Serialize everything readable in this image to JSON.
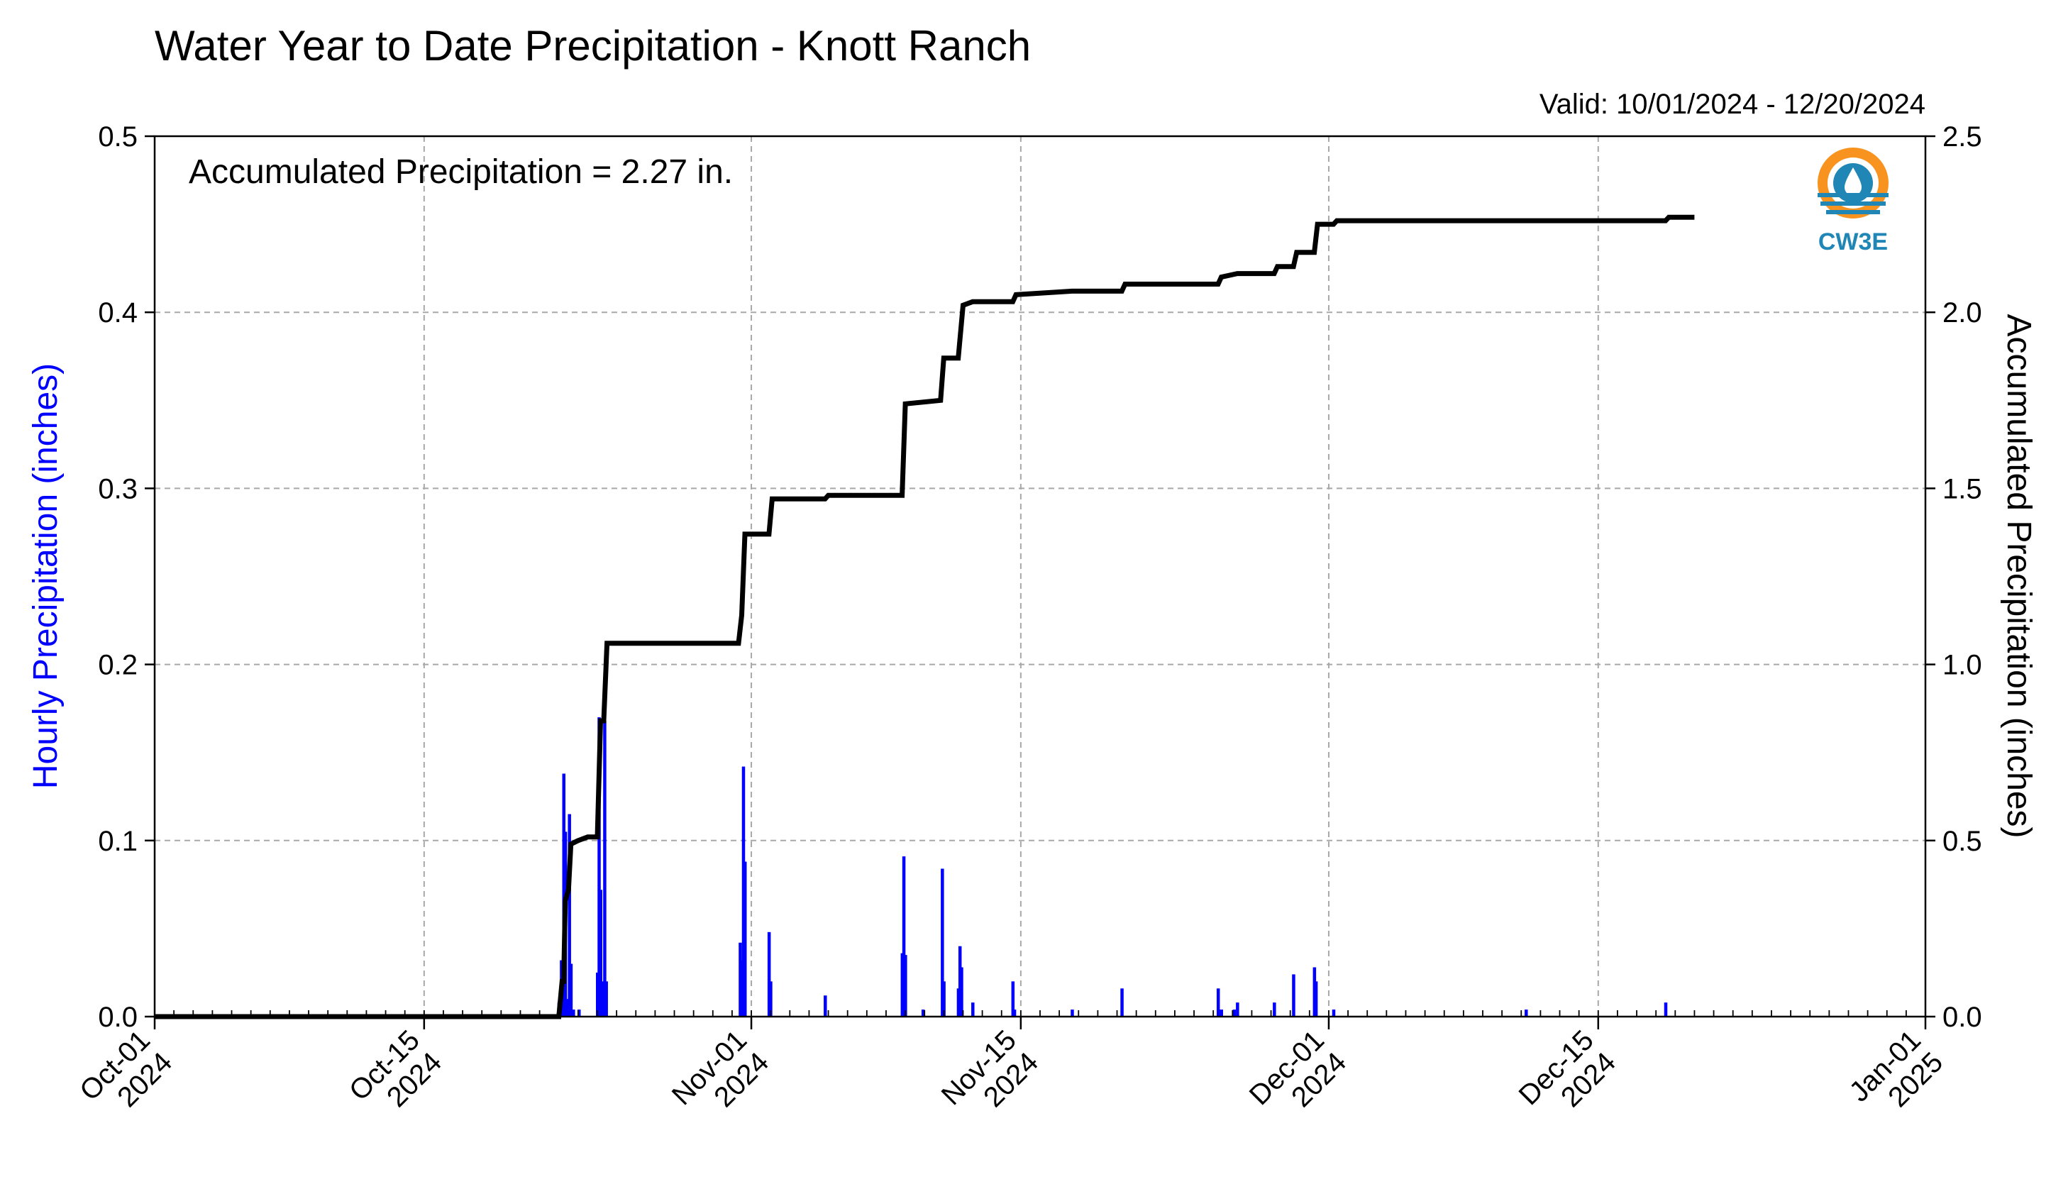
{
  "chart_data": {
    "type": "bar+line",
    "title": "Water Year to Date Precipitation - Knott Ranch",
    "valid_label": "Valid: 10/01/2024 - 12/20/2024",
    "annotation": "Accumulated Precipitation = 2.27 in.",
    "logo_text": "CW3E",
    "x_axis": {
      "range": [
        "2024-10-01",
        "2025-01-01"
      ],
      "major_ticks": [
        {
          "date": "2024-10-01",
          "line1": "Oct-01",
          "line2": "2024"
        },
        {
          "date": "2024-10-15",
          "line1": "Oct-15",
          "line2": "2024"
        },
        {
          "date": "2024-11-01",
          "line1": "Nov-01",
          "line2": "2024"
        },
        {
          "date": "2024-11-15",
          "line1": "Nov-15",
          "line2": "2024"
        },
        {
          "date": "2024-12-01",
          "line1": "Dec-01",
          "line2": "2024"
        },
        {
          "date": "2024-12-15",
          "line1": "Dec-15",
          "line2": "2024"
        },
        {
          "date": "2025-01-01",
          "line1": "Jan-01",
          "line2": "2025"
        }
      ],
      "minor_ticks": "daily"
    },
    "y_left": {
      "label": "Hourly Precipitation (inches)",
      "range": [
        0,
        0.5
      ],
      "ticks": [
        0.0,
        0.1,
        0.2,
        0.3,
        0.4,
        0.5
      ],
      "tick_labels": [
        "0.0",
        "0.1",
        "0.2",
        "0.3",
        "0.4",
        "0.5"
      ],
      "color": "#0000ff"
    },
    "y_right": {
      "label": "Accumulated Precipitation (inches)",
      "range": [
        0,
        2.5
      ],
      "ticks": [
        0.0,
        0.5,
        1.0,
        1.5,
        2.0,
        2.5
      ],
      "tick_labels": [
        "0.0",
        "0.5",
        "1.0",
        "1.5",
        "2.0",
        "2.5"
      ]
    },
    "grid": true,
    "series": [
      {
        "type": "bar",
        "axis": "left",
        "color": "#0000ff",
        "points": [
          {
            "date": "2024-10-22T00:00",
            "value": 0.008
          },
          {
            "date": "2024-10-22T03:00",
            "value": 0.032
          },
          {
            "date": "2024-10-22T06:00",
            "value": 0.138
          },
          {
            "date": "2024-10-22T08:00",
            "value": 0.105
          },
          {
            "date": "2024-10-22T10:00",
            "value": 0.01
          },
          {
            "date": "2024-10-22T13:00",
            "value": 0.115
          },
          {
            "date": "2024-10-22T15:00",
            "value": 0.03
          },
          {
            "date": "2024-10-22T18:00",
            "value": 0.004
          },
          {
            "date": "2024-10-23T01:00",
            "value": 0.004
          },
          {
            "date": "2024-10-24T00:00",
            "value": 0.025
          },
          {
            "date": "2024-10-24T02:00",
            "value": 0.17
          },
          {
            "date": "2024-10-24T04:00",
            "value": 0.072
          },
          {
            "date": "2024-10-24T06:00",
            "value": 0.02
          },
          {
            "date": "2024-10-24T09:00",
            "value": 0.168
          },
          {
            "date": "2024-10-24T11:00",
            "value": 0.02
          },
          {
            "date": "2024-10-31T10:00",
            "value": 0.042
          },
          {
            "date": "2024-10-31T12:00",
            "value": 0.032
          },
          {
            "date": "2024-10-31T14:00",
            "value": 0.142
          },
          {
            "date": "2024-10-31T16:00",
            "value": 0.088
          },
          {
            "date": "2024-11-01T22:00",
            "value": 0.048
          },
          {
            "date": "2024-11-02T00:00",
            "value": 0.02
          },
          {
            "date": "2024-11-04T20:00",
            "value": 0.012
          },
          {
            "date": "2024-11-08T20:00",
            "value": 0.036
          },
          {
            "date": "2024-11-08T22:00",
            "value": 0.091
          },
          {
            "date": "2024-11-09T00:00",
            "value": 0.035
          },
          {
            "date": "2024-11-09T22:00",
            "value": 0.004
          },
          {
            "date": "2024-11-10T22:00",
            "value": 0.084
          },
          {
            "date": "2024-11-11T00:00",
            "value": 0.02
          },
          {
            "date": "2024-11-11T18:00",
            "value": 0.016
          },
          {
            "date": "2024-11-11T20:00",
            "value": 0.04
          },
          {
            "date": "2024-11-11T22:00",
            "value": 0.028
          },
          {
            "date": "2024-11-12T12:00",
            "value": 0.008
          },
          {
            "date": "2024-11-14T14:00",
            "value": 0.02
          },
          {
            "date": "2024-11-14T16:00",
            "value": 0.004
          },
          {
            "date": "2024-11-17T16:00",
            "value": 0.004
          },
          {
            "date": "2024-11-20T06:00",
            "value": 0.016
          },
          {
            "date": "2024-11-25T06:00",
            "value": 0.016
          },
          {
            "date": "2024-11-25T10:00",
            "value": 0.004
          },
          {
            "date": "2024-11-26T02:00",
            "value": 0.004
          },
          {
            "date": "2024-11-26T06:00",
            "value": 0.008
          },
          {
            "date": "2024-11-28T04:00",
            "value": 0.008
          },
          {
            "date": "2024-11-29T04:00",
            "value": 0.024
          },
          {
            "date": "2024-11-30T06:00",
            "value": 0.028
          },
          {
            "date": "2024-11-30T08:00",
            "value": 0.02
          },
          {
            "date": "2024-12-01T06:00",
            "value": 0.004
          },
          {
            "date": "2024-12-11T06:00",
            "value": 0.004
          },
          {
            "date": "2024-12-18T12:00",
            "value": 0.008
          }
        ]
      },
      {
        "type": "line",
        "axis": "right",
        "color": "#000000",
        "step": true,
        "points": [
          {
            "date": "2024-10-01T00:00",
            "value": 0.0
          },
          {
            "date": "2024-10-22T00:00",
            "value": 0.0
          },
          {
            "date": "2024-10-22T04:00",
            "value": 0.1
          },
          {
            "date": "2024-10-22T06:00",
            "value": 0.1
          },
          {
            "date": "2024-10-22T08:00",
            "value": 0.33
          },
          {
            "date": "2024-10-22T12:00",
            "value": 0.36
          },
          {
            "date": "2024-10-22T15:00",
            "value": 0.49
          },
          {
            "date": "2024-10-23T00:00",
            "value": 0.5
          },
          {
            "date": "2024-10-23T12:00",
            "value": 0.51
          },
          {
            "date": "2024-10-24T00:00",
            "value": 0.51
          },
          {
            "date": "2024-10-24T04:00",
            "value": 0.84
          },
          {
            "date": "2024-10-24T08:00",
            "value": 0.84
          },
          {
            "date": "2024-10-24T12:00",
            "value": 1.06
          },
          {
            "date": "2024-10-31T08:00",
            "value": 1.06
          },
          {
            "date": "2024-10-31T12:00",
            "value": 1.14
          },
          {
            "date": "2024-10-31T16:00",
            "value": 1.37
          },
          {
            "date": "2024-11-01T22:00",
            "value": 1.37
          },
          {
            "date": "2024-11-02T02:00",
            "value": 1.47
          },
          {
            "date": "2024-11-04T20:00",
            "value": 1.47
          },
          {
            "date": "2024-11-05T00:00",
            "value": 1.48
          },
          {
            "date": "2024-11-08T20:00",
            "value": 1.48
          },
          {
            "date": "2024-11-09T00:00",
            "value": 1.74
          },
          {
            "date": "2024-11-10T20:00",
            "value": 1.75
          },
          {
            "date": "2024-11-11T00:00",
            "value": 1.87
          },
          {
            "date": "2024-11-11T18:00",
            "value": 1.87
          },
          {
            "date": "2024-11-12T00:00",
            "value": 2.02
          },
          {
            "date": "2024-11-12T12:00",
            "value": 2.03
          },
          {
            "date": "2024-11-14T14:00",
            "value": 2.03
          },
          {
            "date": "2024-11-14T18:00",
            "value": 2.05
          },
          {
            "date": "2024-11-17T16:00",
            "value": 2.06
          },
          {
            "date": "2024-11-20T06:00",
            "value": 2.06
          },
          {
            "date": "2024-11-20T10:00",
            "value": 2.08
          },
          {
            "date": "2024-11-25T06:00",
            "value": 2.08
          },
          {
            "date": "2024-11-25T10:00",
            "value": 2.1
          },
          {
            "date": "2024-11-26T06:00",
            "value": 2.11
          },
          {
            "date": "2024-11-28T04:00",
            "value": 2.11
          },
          {
            "date": "2024-11-28T08:00",
            "value": 2.13
          },
          {
            "date": "2024-11-29T04:00",
            "value": 2.13
          },
          {
            "date": "2024-11-29T08:00",
            "value": 2.17
          },
          {
            "date": "2024-11-30T06:00",
            "value": 2.17
          },
          {
            "date": "2024-11-30T10:00",
            "value": 2.25
          },
          {
            "date": "2024-12-01T06:00",
            "value": 2.25
          },
          {
            "date": "2024-12-01T10:00",
            "value": 2.26
          },
          {
            "date": "2024-12-11T06:00",
            "value": 2.26
          },
          {
            "date": "2024-12-11T10:00",
            "value": 2.26
          },
          {
            "date": "2024-12-18T12:00",
            "value": 2.26
          },
          {
            "date": "2024-12-18T16:00",
            "value": 2.27
          },
          {
            "date": "2024-12-20T00:00",
            "value": 2.27
          }
        ]
      }
    ]
  }
}
